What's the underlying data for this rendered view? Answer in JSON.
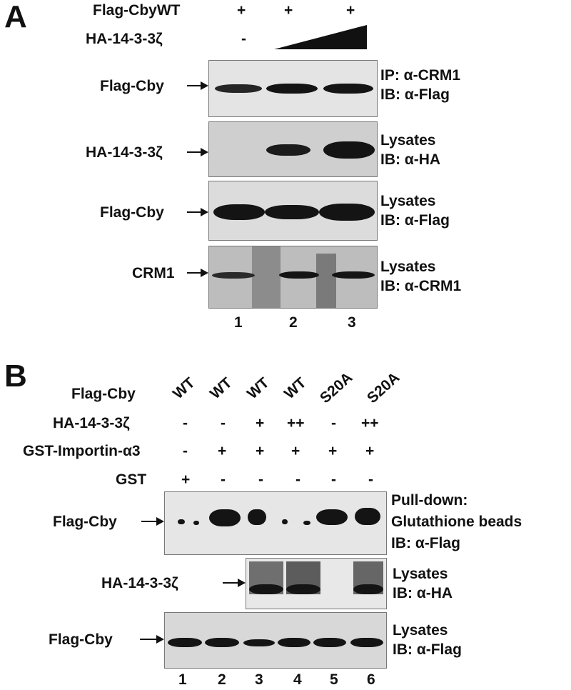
{
  "panel_a": {
    "letter": "A",
    "header": {
      "flag_cby_wt": "Flag-CbyWT",
      "flag_marks": [
        "+",
        "+",
        "+"
      ],
      "ha_label": "HA-14-3-3ζ",
      "ha_first": "-"
    },
    "blots": [
      {
        "left_label": "Flag-Cby",
        "right_line1": "IP: α-CRM1",
        "right_line2": "IB: α-Flag"
      },
      {
        "left_label": "HA-14-3-3ζ",
        "right_line1": "Lysates",
        "right_line2": "IB: α-HA"
      },
      {
        "left_label": "Flag-Cby",
        "right_line1": "Lysates",
        "right_line2": "IB: α-Flag"
      },
      {
        "left_label": "CRM1",
        "right_line1": "Lysates",
        "right_line2": "IB: α-CRM1"
      }
    ],
    "lanes": [
      "1",
      "2",
      "3"
    ]
  },
  "panel_b": {
    "letter": "B",
    "rows": {
      "flag_cby_label": "Flag-Cby",
      "flag_cby_values": [
        "WT",
        "WT",
        "WT",
        "WT",
        "S20A",
        "S20A"
      ],
      "ha_label": "HA-14-3-3ζ",
      "ha_values": [
        "-",
        "-",
        "+",
        "++",
        "-",
        "++"
      ],
      "gst_imp_label": "GST-Importin-α3",
      "gst_imp_values": [
        "-",
        "+",
        "+",
        "+",
        "+",
        "+"
      ],
      "gst_label": "GST",
      "gst_values": [
        "+",
        "-",
        "-",
        "-",
        "-",
        "-"
      ]
    },
    "blots": [
      {
        "left_label": "Flag-Cby",
        "right_line1": "Pull-down:",
        "right_line2": "Glutathione beads",
        "right_line3": "IB: α-Flag"
      },
      {
        "left_label": "HA-14-3-3ζ",
        "right_line1": "Lysates",
        "right_line2": "IB: α-HA"
      },
      {
        "left_label": "Flag-Cby",
        "right_line1": "Lysates",
        "right_line2": "IB: α-Flag"
      }
    ],
    "lanes": [
      "1",
      "2",
      "3",
      "4",
      "5",
      "6"
    ]
  }
}
